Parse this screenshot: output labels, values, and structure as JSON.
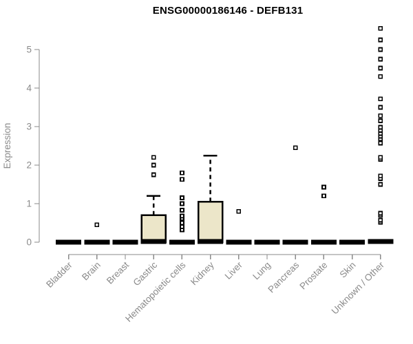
{
  "chart_data": {
    "type": "boxplot",
    "title": "ENSG00000186146 - DEFB131",
    "ylabel": "Expression",
    "xlabel": "",
    "yticks": [
      0,
      1,
      2,
      3,
      4,
      5
    ],
    "ylim": [
      0,
      5.6
    ],
    "grid": false,
    "legend": null,
    "categories": [
      "Bladder",
      "Brain",
      "Breast",
      "Gastric",
      "Hematopoietic cells",
      "Kidney",
      "Liver",
      "Lung",
      "Pancreas",
      "Prostate",
      "Skin",
      "Unknown / Other"
    ],
    "series": [
      {
        "name": "Bladder",
        "q1": 0,
        "median": 0,
        "q3": 0,
        "whisker_low": 0,
        "whisker_high": 0,
        "outliers": []
      },
      {
        "name": "Brain",
        "q1": 0,
        "median": 0,
        "q3": 0,
        "whisker_low": 0,
        "whisker_high": 0,
        "outliers": [
          0.45
        ]
      },
      {
        "name": "Breast",
        "q1": 0,
        "median": 0,
        "q3": 0,
        "whisker_low": 0,
        "whisker_high": 0,
        "outliers": []
      },
      {
        "name": "Gastric",
        "q1": 0,
        "median": 0.02,
        "q3": 0.7,
        "whisker_low": 0,
        "whisker_high": 1.2,
        "outliers": [
          1.75,
          2.0,
          2.2
        ]
      },
      {
        "name": "Hematopoietic cells",
        "q1": 0,
        "median": 0,
        "q3": 0,
        "whisker_low": 0,
        "whisker_high": 0,
        "outliers": [
          0.32,
          0.4,
          0.5,
          0.62,
          0.68,
          0.83,
          1.0,
          1.15,
          1.63,
          1.8
        ]
      },
      {
        "name": "Kidney",
        "q1": 0,
        "median": 0.02,
        "q3": 1.05,
        "whisker_low": 0,
        "whisker_high": 2.25,
        "outliers": []
      },
      {
        "name": "Liver",
        "q1": 0,
        "median": 0,
        "q3": 0,
        "whisker_low": 0,
        "whisker_high": 0,
        "outliers": [
          0.8
        ]
      },
      {
        "name": "Lung",
        "q1": 0,
        "median": 0,
        "q3": 0,
        "whisker_low": 0,
        "whisker_high": 0,
        "outliers": []
      },
      {
        "name": "Pancreas",
        "q1": 0,
        "median": 0,
        "q3": 0,
        "whisker_low": 0,
        "whisker_high": 0,
        "outliers": [
          2.45
        ]
      },
      {
        "name": "Prostate",
        "q1": 0,
        "median": 0,
        "q3": 0,
        "whisker_low": 0,
        "whisker_high": 0,
        "outliers": [
          1.2,
          1.43
        ]
      },
      {
        "name": "Skin",
        "q1": 0,
        "median": 0,
        "q3": 0,
        "whisker_low": 0,
        "whisker_high": 0,
        "outliers": []
      },
      {
        "name": "Unknown / Other",
        "q1": 0,
        "median": 0.02,
        "q3": 0,
        "whisker_low": 0,
        "whisker_high": 0,
        "outliers": [
          0.52,
          0.57,
          0.7,
          0.75,
          1.5,
          1.65,
          1.72,
          2.15,
          2.2,
          2.57,
          2.68,
          2.75,
          2.82,
          2.9,
          2.98,
          3.15,
          3.28,
          3.5,
          3.72,
          4.3,
          4.52,
          4.75,
          5.0,
          5.25,
          5.55
        ]
      }
    ]
  },
  "colors": {
    "background": "#ffffff",
    "title": "#000000",
    "box_fill": "#ECE6C9",
    "box_stroke": "#000000",
    "median": "#000000",
    "whisker": "#000000",
    "outlier_stroke": "#000000",
    "outlier_fill": "#ffffff",
    "axis": "#8a8a8a",
    "tick_label": "#8a8a8a",
    "axis_title": "#8a8a8a"
  }
}
